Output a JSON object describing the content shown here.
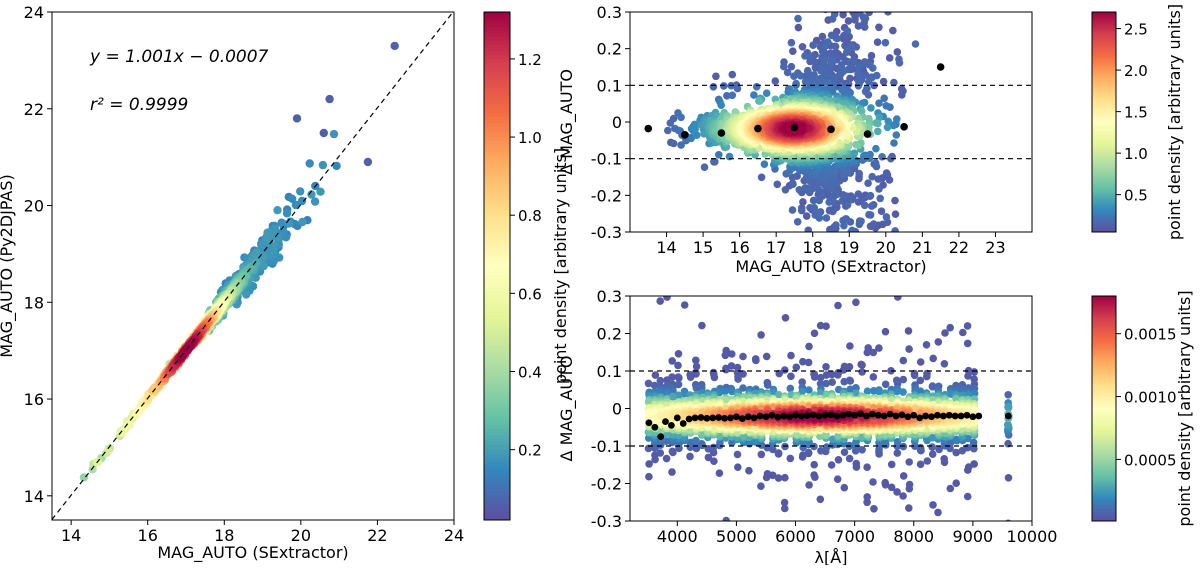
{
  "chart_data": [
    {
      "type": "scatter",
      "id": "left",
      "xlabel": "MAG_AUTO (SExtractor)",
      "ylabel": "MAG_AUTO (Py2DJPAS)",
      "xlim": [
        13.5,
        24
      ],
      "ylim": [
        13.5,
        24
      ],
      "xticks": [
        14,
        16,
        18,
        20,
        22,
        24
      ],
      "yticks": [
        14,
        16,
        18,
        20,
        22,
        24
      ],
      "fit_line": {
        "slope": 1.001,
        "intercept": -0.0007,
        "style": "dashed"
      },
      "annotations": [
        "y = 1.001x − 0.0007",
        "r² = 0.9999"
      ],
      "colorbar": {
        "label": "point density [arbitrary units]",
        "range": [
          0.02,
          1.32
        ],
        "ticks": [
          "0.2",
          "0.4",
          "0.6",
          "0.8",
          "1.0",
          "1.2"
        ]
      },
      "outliers": [
        [
          22.45,
          23.3
        ],
        [
          21.75,
          20.9
        ],
        [
          20.75,
          22.2
        ],
        [
          20.6,
          21.5
        ],
        [
          19.9,
          21.8
        ]
      ]
    },
    {
      "type": "scatter",
      "id": "top-right",
      "xlabel": "MAG_AUTO (SExtractor)",
      "ylabel": "Δ MAG_AUTO",
      "xlim": [
        13,
        24
      ],
      "ylim": [
        -0.3,
        0.3
      ],
      "xticks": [
        14,
        15,
        16,
        17,
        18,
        19,
        20,
        21,
        22,
        23
      ],
      "yticks": [
        "-0.3",
        "-0.2",
        "-0.1",
        "0",
        "0.1",
        "0.2",
        "0.3"
      ],
      "hlines": [
        0.1,
        -0.1
      ],
      "colorbar": {
        "label": "point density [arbitrary units]",
        "range": [
          0.05,
          2.7
        ],
        "ticks": [
          "0.5",
          "1.0",
          "1.5",
          "2.0",
          "2.5"
        ]
      },
      "binned_medians": {
        "x": [
          13.5,
          14.5,
          15.5,
          16.5,
          17.5,
          18.5,
          19.5,
          20.5,
          21.5
        ],
        "y": [
          -0.018,
          -0.035,
          -0.03,
          -0.018,
          -0.015,
          -0.02,
          -0.033,
          -0.013,
          0.15
        ]
      }
    },
    {
      "type": "scatter",
      "id": "bottom-right",
      "xlabel": "λ[Å]",
      "ylabel": "Δ MAG_AUTO",
      "xlim": [
        3200,
        10000
      ],
      "ylim": [
        -0.3,
        0.3
      ],
      "xticks": [
        4000,
        5000,
        6000,
        7000,
        8000,
        9000,
        10000
      ],
      "yticks": [
        "-0.3",
        "-0.2",
        "-0.1",
        "0",
        "0.1",
        "0.2",
        "0.3"
      ],
      "hlines": [
        0.1,
        -0.1
      ],
      "colorbar": {
        "label": "point density [arbitrary units]",
        "range": [
          1e-05,
          0.0018
        ],
        "ticks": [
          "0.0005",
          "0.0010",
          "0.0015"
        ]
      },
      "binned_medians": {
        "x": [
          3520,
          3620,
          3720,
          3800,
          3900,
          4000,
          4100,
          4200,
          4300,
          4400,
          4500,
          4600,
          4700,
          4800,
          4900,
          5000,
          5100,
          5200,
          5300,
          5400,
          5500,
          5600,
          5700,
          5800,
          5900,
          6000,
          6100,
          6200,
          6300,
          6400,
          6500,
          6600,
          6700,
          6800,
          6900,
          7000,
          7100,
          7200,
          7300,
          7400,
          7500,
          7600,
          7700,
          7800,
          7900,
          8000,
          8100,
          8200,
          8300,
          8400,
          8500,
          8600,
          8700,
          8800,
          8900,
          9000,
          9100,
          9600
        ],
        "y": [
          -0.038,
          -0.05,
          -0.075,
          -0.035,
          -0.045,
          -0.025,
          -0.04,
          -0.028,
          -0.025,
          -0.024,
          -0.026,
          -0.025,
          -0.024,
          -0.026,
          -0.025,
          -0.022,
          -0.027,
          -0.022,
          -0.025,
          -0.02,
          -0.022,
          -0.018,
          -0.023,
          -0.02,
          -0.022,
          -0.018,
          -0.02,
          -0.019,
          -0.017,
          -0.02,
          -0.018,
          -0.017,
          -0.02,
          -0.018,
          -0.015,
          -0.018,
          -0.014,
          -0.02,
          -0.015,
          -0.018,
          -0.02,
          -0.015,
          -0.02,
          -0.017,
          -0.022,
          -0.018,
          -0.025,
          -0.02,
          -0.022,
          -0.018,
          -0.02,
          -0.018,
          -0.02,
          -0.02,
          -0.018,
          -0.022,
          -0.02,
          -0.02
        ]
      }
    }
  ]
}
